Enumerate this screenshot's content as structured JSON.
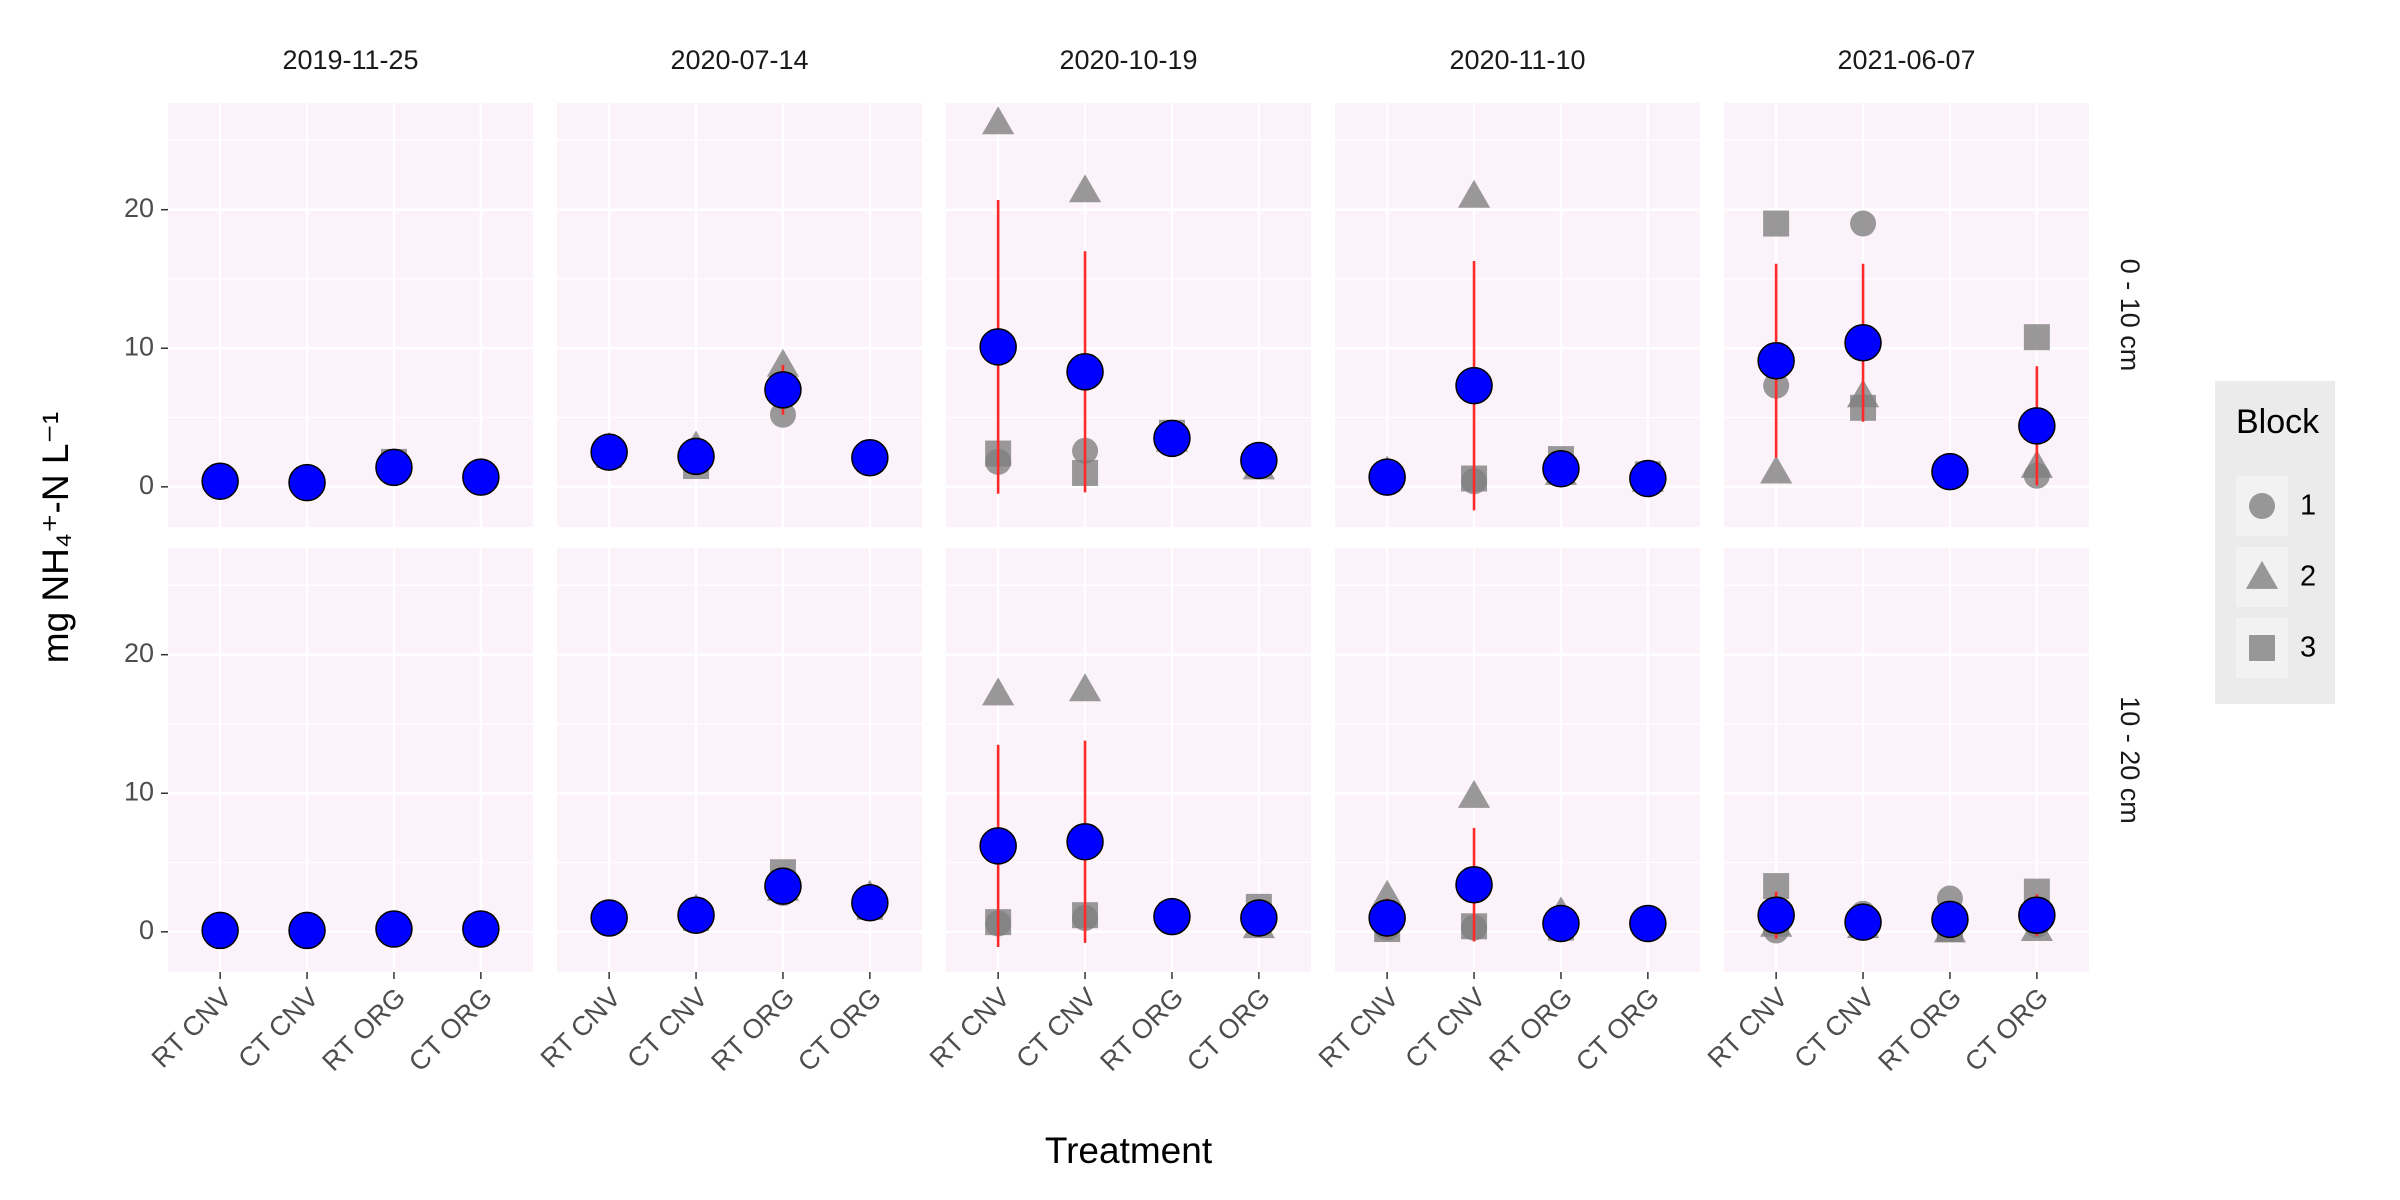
{
  "chart_data": {
    "type": "point",
    "x_label": "Treatment",
    "y_label": "mg NH₄⁺-N L⁻¹",
    "legend_title": "Block",
    "categories": [
      "RT CNV",
      "CT CNV",
      "RT ORG",
      "CT ORG"
    ],
    "dates": [
      "2019-11-25",
      "2020-07-14",
      "2020-10-19",
      "2020-11-10",
      "2021-06-07"
    ],
    "ylim": [
      -2.9,
      27.7
    ],
    "yticks": [
      0,
      10,
      20
    ],
    "grid": true,
    "blocks": [
      {
        "name": "1",
        "marker": "circle",
        "color": "#7f7f7f"
      },
      {
        "name": "2",
        "marker": "triangle",
        "color": "#7f7f7f"
      },
      {
        "name": "3",
        "marker": "square",
        "color": "#7f7f7f"
      }
    ],
    "mean_color": "#0000ff",
    "error_color": "#ff2a2a",
    "facets": [
      {
        "label": "0 - 10 cm",
        "panels": [
          {
            "blocks": [
              [
                0.3,
                0.2,
                1.2,
                0.6
              ],
              [
                0.6,
                0.5,
                1.6,
                0.8
              ],
              [
                0.4,
                0.3,
                1.8,
                0.7
              ]
            ],
            "mean": [
              0.4,
              0.3,
              1.4,
              0.7
            ],
            "error": [
              0.2,
              0.2,
              0.3,
              0.1
            ]
          },
          {
            "blocks": [
              [
                2.4,
                2.0,
                5.2,
                2.0
              ],
              [
                2.8,
                2.9,
                8.8,
                2.3
              ],
              [
                2.3,
                1.5,
                7.0,
                2.0
              ]
            ],
            "mean": [
              2.5,
              2.2,
              7.0,
              2.1
            ],
            "error": [
              0.3,
              0.7,
              1.8,
              0.2
            ]
          },
          {
            "blocks": [
              [
                1.8,
                2.6,
                3.2,
                2.2
              ],
              [
                26.3,
                21.4,
                3.4,
                1.4
              ],
              [
                2.4,
                1.0,
                3.9,
                2.0
              ]
            ],
            "mean": [
              10.1,
              8.3,
              3.5,
              1.9
            ],
            "error": [
              10.6,
              8.7,
              0.3,
              0.4
            ]
          },
          {
            "blocks": [
              [
                0.5,
                0.4,
                1.0,
                0.4
              ],
              [
                1.1,
                21.0,
                1.0,
                0.5
              ],
              [
                0.6,
                0.6,
                2.0,
                0.9
              ]
            ],
            "mean": [
              0.7,
              7.3,
              1.3,
              0.6
            ],
            "error": [
              0.2,
              9.0,
              0.5,
              0.2
            ]
          },
          {
            "blocks": [
              [
                7.3,
                19.0,
                1.1,
                0.8
              ],
              [
                1.1,
                6.6,
                1.2,
                1.5
              ],
              [
                19.0,
                5.7,
                1.0,
                10.8
              ]
            ],
            "mean": [
              9.1,
              10.4,
              1.1,
              4.4
            ],
            "error": [
              7.0,
              5.7,
              0.1,
              4.3
            ]
          }
        ]
      },
      {
        "label": "10 - 20 cm",
        "panels": [
          {
            "blocks": [
              [
                0.1,
                0.1,
                0.2,
                0.2
              ],
              [
                0.2,
                0.2,
                0.3,
                0.2
              ],
              [
                0.1,
                0.1,
                0.2,
                0.3
              ]
            ],
            "mean": [
              0.1,
              0.1,
              0.2,
              0.2
            ],
            "error": [
              0.1,
              0.1,
              0.1,
              0.1
            ]
          },
          {
            "blocks": [
              [
                0.9,
                1.0,
                2.8,
                2.0
              ],
              [
                1.1,
                1.6,
                3.1,
                2.6
              ],
              [
                1.0,
                1.0,
                4.3,
                1.8
              ]
            ],
            "mean": [
              1.0,
              1.2,
              3.3,
              2.1
            ],
            "error": [
              0.1,
              0.3,
              0.8,
              0.4
            ]
          },
          {
            "blocks": [
              [
                0.6,
                1.0,
                1.0,
                0.8
              ],
              [
                17.2,
                17.5,
                1.2,
                0.4
              ],
              [
                0.7,
                1.2,
                1.2,
                1.8
              ]
            ],
            "mean": [
              6.2,
              6.5,
              1.1,
              1.0
            ],
            "error": [
              7.3,
              7.3,
              0.1,
              0.7
            ]
          },
          {
            "blocks": [
              [
                0.3,
                0.3,
                0.4,
                0.5
              ],
              [
                2.6,
                9.8,
                1.4,
                0.7
              ],
              [
                0.2,
                0.4,
                0.3,
                0.6
              ]
            ],
            "mean": [
              1.0,
              3.4,
              0.6,
              0.6
            ],
            "error": [
              1.4,
              4.1,
              0.6,
              0.1
            ]
          },
          {
            "blocks": [
              [
                0.1,
                1.3,
                2.4,
                0.5
              ],
              [
                0.5,
                0.4,
                0.1,
                0.2
              ],
              [
                3.3,
                0.5,
                0.2,
                2.9
              ]
            ],
            "mean": [
              1.2,
              0.7,
              0.9,
              1.2
            ],
            "error": [
              1.7,
              0.5,
              1.3,
              1.5
            ]
          }
        ]
      }
    ]
  }
}
